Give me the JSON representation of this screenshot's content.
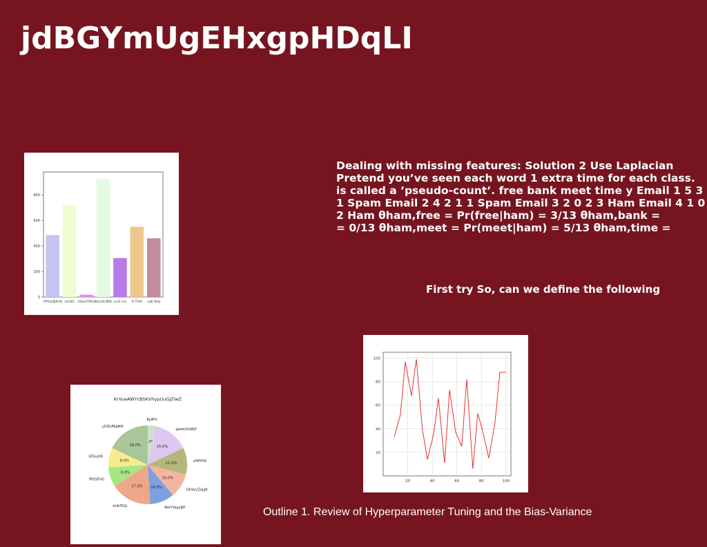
{
  "slide": {
    "title": "jdBGYmUgEHxgpHDqLI",
    "body_text": "Dealing with missing features: Solution 2 Use Laplacian\nPretend you’ve seen each word 1 extra time for each class.\nis called a ’pseudo-count’. free bank meet time y Email 1 5 3\n1 Spam Email 2 4 2 1 1 Spam Email 3 2 0 2 3 Ham Email 4 1 0\n2 Ham θham,free = Pr(free|ham) = 3/13 θham,bank =\n= 0/13 θham,meet = Pr(meet|ham) = 5/13 θham,time =",
    "subtitle": "First try So, can we define the following",
    "outline": "Outline 1. Review of Hyperparameter Tuning and the Bias-Variance"
  },
  "chart_data": [
    {
      "type": "bar",
      "categories": [
        "YPVlpQJRvN",
        "sorQG",
        "AZevITREd",
        "BrjsXCdRN",
        "LruE mn",
        "R TVIX",
        "vqR Bmj"
      ],
      "values": [
        485,
        720,
        18,
        925,
        305,
        550,
        460
      ],
      "colors": [
        "#c4c4f2",
        "#eefdd0",
        "#ee88ee",
        "#e3fbe3",
        "#b67be8",
        "#eec88a",
        "#c38ba0"
      ],
      "ylim": [
        0,
        980
      ],
      "yticks": [
        0,
        200,
        400,
        600,
        800
      ],
      "grid": false
    },
    {
      "type": "line",
      "x": [
        9,
        14,
        18,
        23,
        27,
        32,
        36,
        41,
        45,
        50,
        54,
        59,
        64,
        68,
        73,
        77,
        81,
        86,
        91,
        95,
        100
      ],
      "y": [
        33,
        52,
        97,
        68,
        99,
        39,
        14,
        35,
        66,
        11,
        73,
        37,
        25,
        82,
        6,
        53,
        38,
        15,
        45,
        88,
        88
      ],
      "color": "#e83030",
      "xlim": [
        0,
        104
      ],
      "ylim": [
        0,
        105
      ],
      "xticks": [
        20,
        40,
        60,
        80,
        100
      ],
      "yticks": [
        20,
        40,
        60,
        80,
        100
      ],
      "grid": true
    },
    {
      "type": "pie",
      "title": "KrVueAWYcBSKVhypUuGjZlwZ",
      "labels": [
        "RjdPrt",
        "gwwUXdAJY",
        "ztMYOV",
        "OkVyzZajgK",
        "MHYYepsBP",
        "enbfSGJ",
        "fPGSFoG",
        "GFbuXR",
        "yDZxFApNH"
      ],
      "values": [
        3.0,
        15.0,
        11.0,
        10.0,
        10.0,
        17.0,
        8.0,
        8.0,
        18.0
      ],
      "pct_labels": [
        "3.0%",
        "15.0%",
        "11.0%",
        "10.0%",
        "10.0%",
        "17.0%",
        "8.0%",
        "8.0%",
        "18.0%"
      ],
      "colors": [
        "#cfe1c7",
        "#dec8f0",
        "#b5b67a",
        "#f4b59f",
        "#7e9fe0",
        "#eda888",
        "#a6e683",
        "#f7ec8c",
        "#a9c59a"
      ]
    }
  ]
}
